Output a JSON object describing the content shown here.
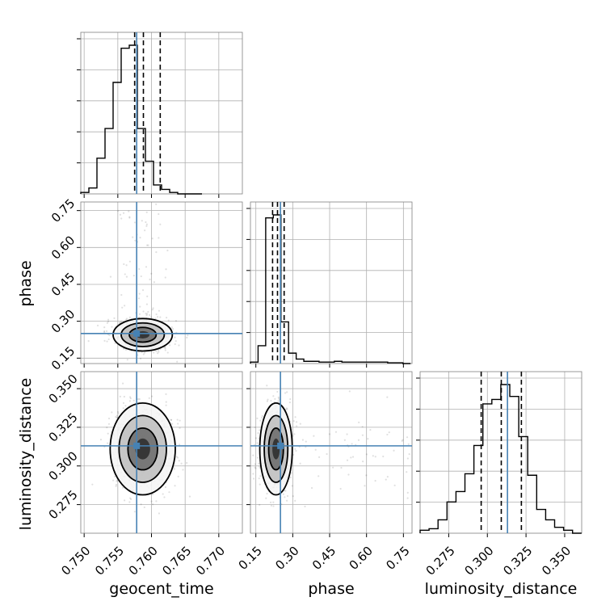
{
  "chart_data": {
    "type": "corner",
    "parameters": [
      "geocent_time",
      "phase",
      "luminosity_distance"
    ],
    "truths": {
      "geocent_time": 0.7578,
      "phase": 0.25,
      "luminosity_distance": 0.313
    },
    "truth_color": "#4682b4",
    "quantiles": {
      "geocent_time": [
        0.7575,
        0.7588,
        0.7613
      ],
      "phase": [
        0.218,
        0.238,
        0.265
      ],
      "luminosity_distance": [
        0.296,
        0.309,
        0.322
      ]
    },
    "ranges": {
      "geocent_time": [
        0.7495,
        0.7735
      ],
      "phase": [
        0.128,
        0.785
      ],
      "luminosity_distance": [
        0.2565,
        0.361
      ]
    },
    "ticks": {
      "geocent_time": [
        0.75,
        0.755,
        0.76,
        0.765,
        0.77
      ],
      "phase": [
        0.15,
        0.3,
        0.45,
        0.6,
        0.75
      ],
      "luminosity_distance": [
        0.275,
        0.3,
        0.325,
        0.35
      ]
    },
    "tick_labels": {
      "geocent_time": [
        "0.750",
        "0.755",
        "0.760",
        "0.765",
        "0.770"
      ],
      "phase": [
        "0.15",
        "0.30",
        "0.45",
        "0.60",
        "0.75"
      ],
      "luminosity_distance": [
        "0.275",
        "0.300",
        "0.325",
        "0.350"
      ]
    },
    "histograms": {
      "geocent_time": {
        "edges": [
          0.7495,
          0.7507,
          0.7519,
          0.7531,
          0.7543,
          0.7555,
          0.7567,
          0.7579,
          0.7591,
          0.7603,
          0.7615,
          0.7627,
          0.7639,
          0.7651,
          0.7663,
          0.7675
        ],
        "counts": [
          0.01,
          0.04,
          0.24,
          0.44,
          0.75,
          0.98,
          1.0,
          0.44,
          0.22,
          0.06,
          0.03,
          0.01,
          0.0,
          0.0,
          0.0
        ]
      },
      "phase": {
        "edges": [
          0.128,
          0.159,
          0.19,
          0.221,
          0.252,
          0.283,
          0.314,
          0.345,
          0.376,
          0.407,
          0.438,
          0.469,
          0.5,
          0.531,
          0.562,
          0.593,
          0.624,
          0.655,
          0.686,
          0.717,
          0.748,
          0.779
        ],
        "counts": [
          0.01,
          0.12,
          0.98,
          1.0,
          0.28,
          0.07,
          0.03,
          0.015,
          0.015,
          0.01,
          0.01,
          0.015,
          0.01,
          0.01,
          0.01,
          0.01,
          0.01,
          0.01,
          0.005,
          0.005,
          0.0
        ]
      },
      "luminosity_distance": {
        "edges": [
          0.2565,
          0.2623,
          0.2681,
          0.2739,
          0.2797,
          0.2855,
          0.2913,
          0.2971,
          0.3029,
          0.3087,
          0.3145,
          0.3203,
          0.3261,
          0.3319,
          0.3377,
          0.3435,
          0.3493,
          0.3551,
          0.3609
        ],
        "counts": [
          0.02,
          0.03,
          0.09,
          0.21,
          0.28,
          0.4,
          0.59,
          0.87,
          0.9,
          1.0,
          0.92,
          0.65,
          0.39,
          0.16,
          0.09,
          0.04,
          0.02,
          0.0
        ]
      }
    },
    "panels_2d": [
      {
        "x": "geocent_time",
        "y": "phase",
        "center": [
          0.7587,
          0.245
        ],
        "spread": [
          0.002,
          0.03
        ]
      },
      {
        "x": "geocent_time",
        "y": "luminosity_distance",
        "center": [
          0.7587,
          0.311
        ],
        "spread": [
          0.0022,
          0.0135
        ]
      },
      {
        "x": "phase",
        "y": "luminosity_distance",
        "center": [
          0.232,
          0.311
        ],
        "spread": [
          0.03,
          0.0135
        ]
      }
    ],
    "grid": true,
    "xlabel_row_bottom": [
      "geocent_time",
      "phase",
      "luminosity_distance"
    ],
    "ylabel_col_left": [
      "",
      "phase",
      "luminosity_distance"
    ]
  }
}
